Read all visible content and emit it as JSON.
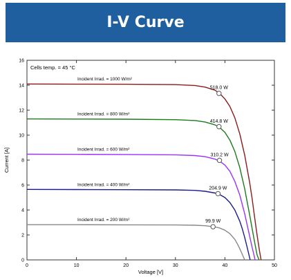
{
  "header": {
    "title": "I-V Curve"
  },
  "chart_data": {
    "type": "line",
    "title": "",
    "annotation": "Cells temp. = 45 °C",
    "xlabel": "Voltage [V]",
    "ylabel": "Current [A]",
    "xlim": [
      0,
      50
    ],
    "ylim": [
      0,
      16
    ],
    "xticks": [
      0,
      10,
      20,
      30,
      40,
      50
    ],
    "yticks": [
      0,
      2,
      4,
      6,
      8,
      10,
      12,
      14,
      16
    ],
    "grid": false,
    "series": [
      {
        "name": "Incident Irrad. = 1000 W/m²",
        "color": "#8b1a1a",
        "x": [
          0,
          10,
          20,
          30,
          34,
          36,
          38,
          39,
          40,
          41,
          42,
          43,
          44,
          45,
          45.5,
          46,
          46.5,
          47,
          47.3
        ],
        "y": [
          14.1,
          14.09,
          14.08,
          14.05,
          13.98,
          13.85,
          13.6,
          13.33,
          12.9,
          12.3,
          11.4,
          10.1,
          8.4,
          6.2,
          4.9,
          3.4,
          2.0,
          0.7,
          0
        ],
        "mpp": {
          "x": 38.8,
          "y": 13.35,
          "label": "518.0 W"
        }
      },
      {
        "name": "Incident Irrad. = 800 W/m²",
        "color": "#1a7a1a",
        "x": [
          0,
          10,
          20,
          30,
          34,
          36,
          38,
          39,
          40,
          41,
          42,
          43,
          44,
          45,
          45.5,
          46,
          46.5,
          46.9
        ],
        "y": [
          11.3,
          11.29,
          11.28,
          11.24,
          11.17,
          11.05,
          10.82,
          10.6,
          10.22,
          9.6,
          8.7,
          7.4,
          5.7,
          3.6,
          2.5,
          1.4,
          0.4,
          0
        ],
        "mpp": {
          "x": 38.8,
          "y": 10.68,
          "label": "414.8 W"
        }
      },
      {
        "name": "Incident Irrad. = 600 W/m²",
        "color": "#9b30ff",
        "x": [
          0,
          10,
          20,
          30,
          34,
          36,
          38,
          39,
          40,
          41,
          42,
          43,
          44,
          44.5,
          45,
          45.5,
          46.1
        ],
        "y": [
          8.47,
          8.46,
          8.45,
          8.42,
          8.36,
          8.27,
          8.08,
          7.9,
          7.6,
          7.1,
          6.3,
          5.2,
          3.7,
          2.8,
          1.9,
          1.0,
          0
        ],
        "mpp": {
          "x": 38.9,
          "y": 7.98,
          "label": "310.2 W"
        }
      },
      {
        "name": "Incident Irrad. = 400 W/m²",
        "color": "#1a1a8b",
        "x": [
          0,
          10,
          20,
          30,
          34,
          36,
          38,
          39,
          40,
          41,
          42,
          43,
          43.5,
          44,
          44.5,
          45.1
        ],
        "y": [
          5.65,
          5.64,
          5.63,
          5.61,
          5.57,
          5.5,
          5.36,
          5.22,
          5.0,
          4.6,
          4.0,
          3.1,
          2.5,
          1.8,
          1.0,
          0
        ],
        "mpp": {
          "x": 38.6,
          "y": 5.31,
          "label": "204.9 W"
        }
      },
      {
        "name": "Incident Irrad. = 200 W/m²",
        "color": "#888888",
        "x": [
          0,
          10,
          20,
          30,
          34,
          36,
          38,
          39,
          40,
          41,
          42,
          42.5,
          43,
          43.5,
          44
        ],
        "y": [
          2.82,
          2.82,
          2.81,
          2.8,
          2.78,
          2.74,
          2.64,
          2.55,
          2.38,
          2.1,
          1.65,
          1.3,
          0.9,
          0.45,
          0
        ],
        "mpp": {
          "x": 37.6,
          "y": 2.66,
          "label": "99.9 W"
        }
      }
    ]
  }
}
